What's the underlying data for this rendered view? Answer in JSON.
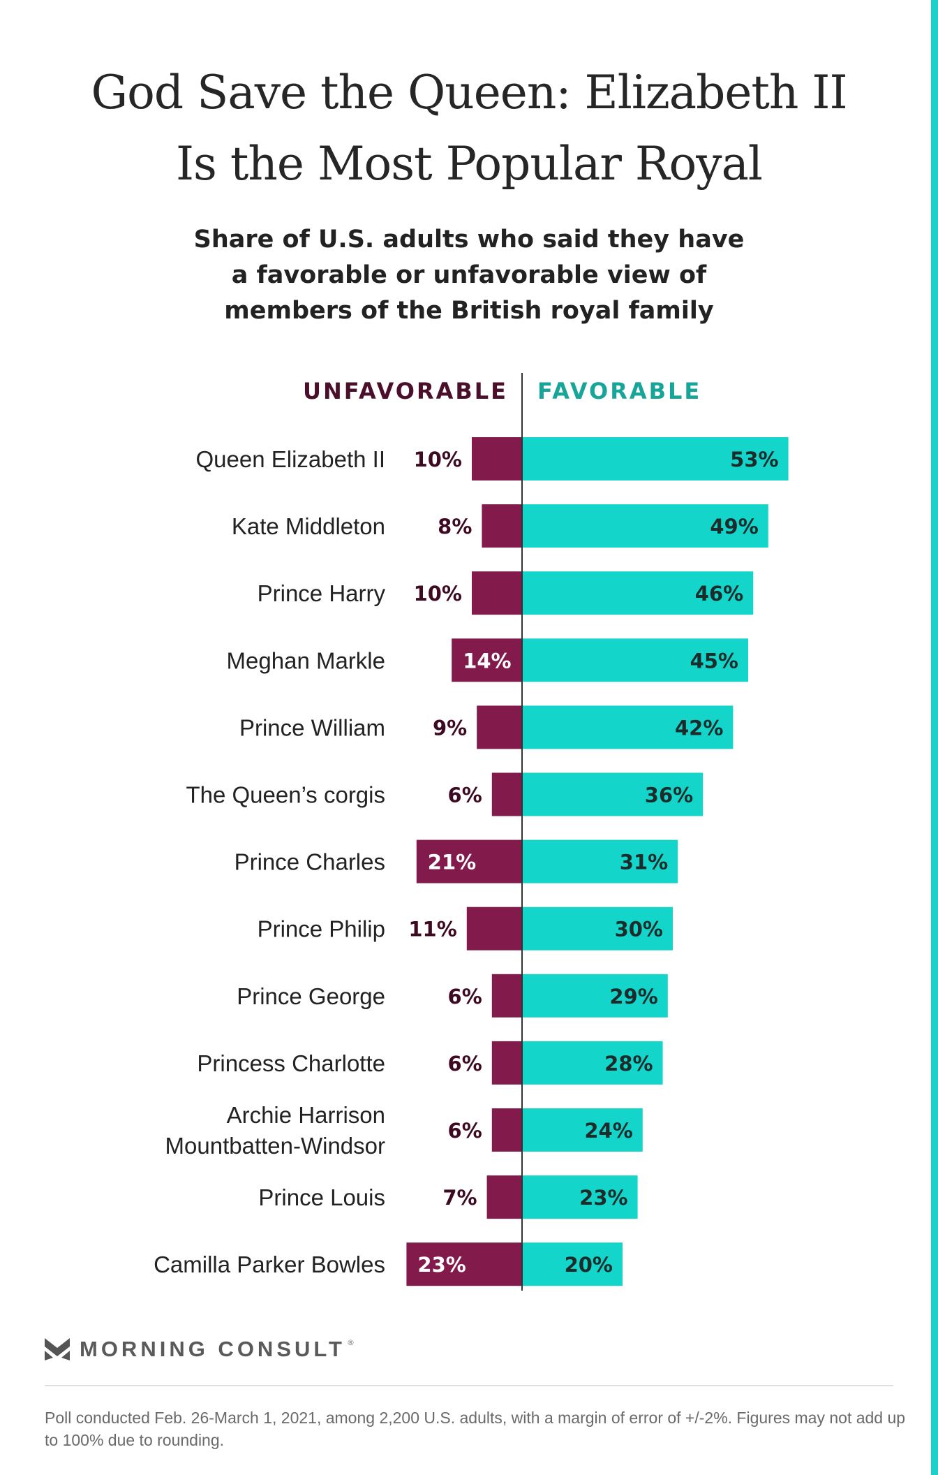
{
  "title_line1": "God Save the Queen: Elizabeth II",
  "title_line2": "Is the Most Popular Royal",
  "subtitle_lines": [
    "Share of U.S. adults who said they have",
    "a favorable or unfavorable view of",
    "members of the British royal family"
  ],
  "colors": {
    "unfavorable": "#821a4b",
    "unfavorable_header": "#4a0f2b",
    "favorable": "#13d5c9",
    "favorable_header": "#17a59a",
    "accent": "#1fd0c9"
  },
  "chart_data": {
    "type": "bar",
    "orientation": "horizontal-diverging",
    "legend_placement": "top-center",
    "grid": false,
    "xlim": [
      -23,
      53
    ],
    "series": [
      {
        "name": "UNFAVORABLE",
        "values": [
          10,
          8,
          10,
          14,
          9,
          6,
          21,
          11,
          6,
          6,
          6,
          7,
          23
        ],
        "labels": [
          "10%",
          "8%",
          "10%",
          "14%",
          "9%",
          "6%",
          "21%",
          "11%",
          "6%",
          "6%",
          "6%",
          "7%",
          "23%"
        ]
      },
      {
        "name": "FAVORABLE",
        "values": [
          53,
          49,
          46,
          45,
          42,
          36,
          31,
          30,
          29,
          28,
          24,
          23,
          20
        ],
        "labels": [
          "53%",
          "49%",
          "46%",
          "45%",
          "42%",
          "36%",
          "31%",
          "30%",
          "29%",
          "28%",
          "24%",
          "23%",
          "20%"
        ]
      }
    ],
    "categories": [
      [
        "Queen Elizabeth II"
      ],
      [
        "Kate Middleton"
      ],
      [
        "Prince Harry"
      ],
      [
        "Meghan Markle"
      ],
      [
        "Prince William"
      ],
      [
        "The Queen’s corgis"
      ],
      [
        "Prince Charles"
      ],
      [
        "Prince Philip"
      ],
      [
        "Prince George"
      ],
      [
        "Princess Charlotte"
      ],
      [
        "Archie Harrison",
        "Mountbatten-Windsor"
      ],
      [
        "Prince Louis"
      ],
      [
        "Camilla Parker Bowles"
      ]
    ]
  },
  "logo": {
    "icon": "morning-consult-chevron-icon",
    "text": "MORNING CONSULT",
    "mark": "®"
  },
  "footnote": "Poll conducted Feb. 26-March 1, 2021, among 2,200 U.S. adults, with a margin of error of +/-2%. Figures may not add up to 100% due to rounding."
}
